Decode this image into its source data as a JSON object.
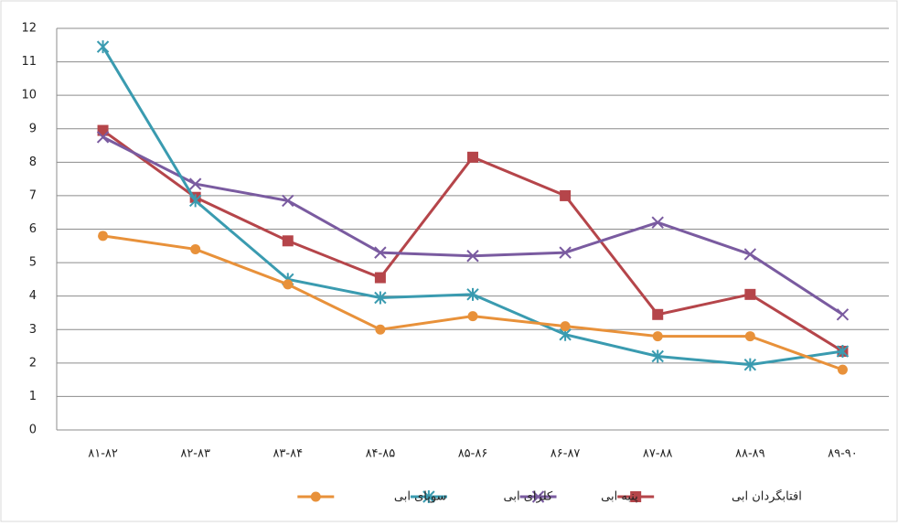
{
  "chart_data": {
    "type": "line",
    "categories": [
      "۸۱-۸۲",
      "۸۲-۸۳",
      "۸۳-۸۴",
      "۸۴-۸۵",
      "۸۵-۸۶",
      "۸۶-۸۷",
      "۸۷-۸۸",
      "۸۸-۸۹",
      "۸۹-۹۰"
    ],
    "series": [
      {
        "name": "افتابگردان ابی",
        "color": "#b5454a",
        "marker": "square",
        "values": [
          8.95,
          6.95,
          5.65,
          4.55,
          8.15,
          7.0,
          3.45,
          4.05,
          2.35
        ]
      },
      {
        "name": "پنبه ابی",
        "color": "#7a5ba0",
        "marker": "x",
        "values": [
          8.75,
          7.35,
          6.85,
          5.3,
          5.2,
          5.3,
          6.2,
          5.25,
          3.45
        ]
      },
      {
        "name": "کلزای ابی",
        "color": "#3a9bb0",
        "marker": "asterisk",
        "values": [
          11.45,
          6.85,
          4.5,
          3.95,
          4.05,
          2.85,
          2.2,
          1.95,
          2.35
        ]
      },
      {
        "name": "سویای ابی",
        "color": "#e8913a",
        "marker": "circle",
        "values": [
          5.8,
          5.4,
          4.35,
          3.0,
          3.4,
          3.1,
          2.8,
          2.8,
          1.8
        ]
      }
    ],
    "ylim": [
      0,
      12
    ],
    "yticks": [
      0,
      1,
      2,
      3,
      4,
      5,
      6,
      7,
      8,
      9,
      10,
      11,
      12
    ],
    "grid": true,
    "legend": "bottom"
  }
}
